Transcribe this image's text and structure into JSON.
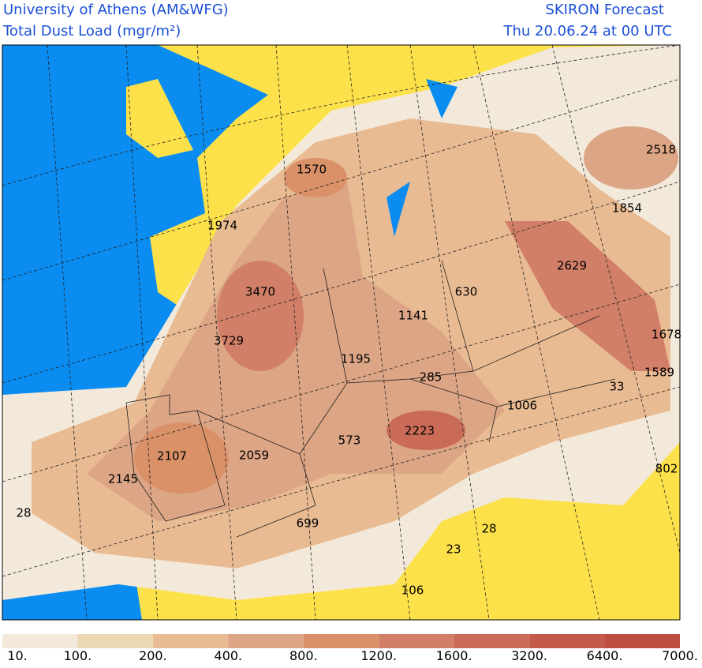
{
  "header": {
    "left": [
      "University of Athens (AM&WFG)",
      "Total Dust Load (mgr/m²)"
    ],
    "right": [
      "SKIRON Forecast",
      "Thu 20.06.24 at 00 UTC"
    ]
  },
  "map_labels": [
    1570,
    1974,
    3470,
    3729,
    1141,
    630,
    1195,
    285,
    1006,
    2223,
    573,
    2059,
    2107,
    2145,
    28,
    699,
    28,
    23,
    106,
    33,
    1589,
    1678,
    2629,
    1854,
    2518,
    802
  ],
  "colorbar": {
    "labels": [
      "10.",
      "100.",
      "200.",
      "400.",
      "800.",
      "1200.",
      "1600.",
      "3200.",
      "6400.",
      "7000."
    ],
    "colors": [
      "#f3e9da",
      "#ecd8b4",
      "#e9bb92",
      "#dca585",
      "#da9168",
      "#d17f68",
      "#c96b57",
      "#c45a4b",
      "#bf4c41"
    ]
  }
}
